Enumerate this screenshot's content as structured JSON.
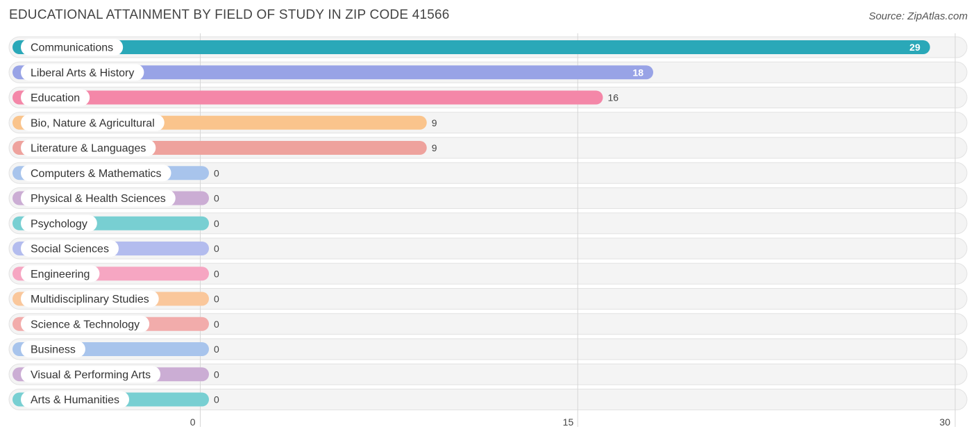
{
  "header": {
    "title": "EDUCATIONAL ATTAINMENT BY FIELD OF STUDY IN ZIP CODE 41566",
    "source": "Source: ZipAtlas.com"
  },
  "chart_data": {
    "type": "bar",
    "orientation": "horizontal",
    "title": "EDUCATIONAL ATTAINMENT BY FIELD OF STUDY IN ZIP CODE 41566",
    "categories": [
      "Communications",
      "Liberal Arts & History",
      "Education",
      "Bio, Nature & Agricultural",
      "Literature & Languages",
      "Computers & Mathematics",
      "Physical & Health Sciences",
      "Psychology",
      "Social Sciences",
      "Engineering",
      "Multidisciplinary Studies",
      "Science & Technology",
      "Business",
      "Visual & Performing Arts",
      "Arts & Humanities"
    ],
    "values": [
      29,
      18,
      16,
      9,
      9,
      0,
      0,
      0,
      0,
      0,
      0,
      0,
      0,
      0,
      0
    ],
    "value_labels": [
      "29",
      "18",
      "16",
      "9",
      "9",
      "0",
      "0",
      "0",
      "0",
      "0",
      "0",
      "0",
      "0",
      "0",
      "0"
    ],
    "colors": [
      "#2aa8b8",
      "#98a3e6",
      "#f487a8",
      "#fac48c",
      "#eea29d",
      "#a8c4ec",
      "#cbadd4",
      "#78cfd2",
      "#b3bcee",
      "#f6a6c2",
      "#fac79b",
      "#f2acab",
      "#a8c4ec",
      "#cbadd4",
      "#78cfd2"
    ],
    "xlim": [
      0,
      30
    ],
    "x_ticks": [
      "0",
      "15",
      "30"
    ],
    "grid": true,
    "xlabel": "",
    "ylabel": ""
  }
}
